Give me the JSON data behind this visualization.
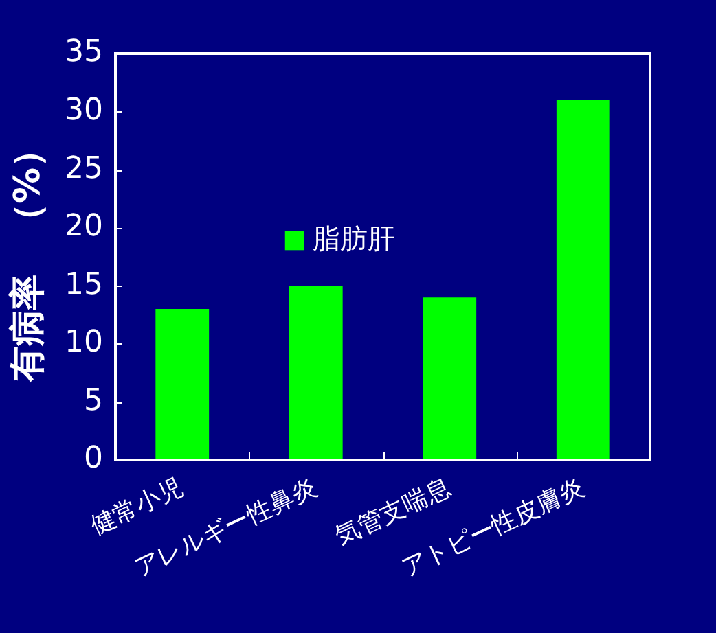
{
  "chart_data": {
    "type": "bar",
    "ylabel": "有病率　（%）",
    "categories": [
      "健常小児",
      "アレルギー性鼻炎",
      "気管支喘息",
      "アトピー性皮膚炎"
    ],
    "series": [
      {
        "name": "脂肪肝",
        "color": "#00ff00",
        "values": [
          13,
          15,
          14,
          31
        ]
      }
    ],
    "ylim": [
      0,
      35
    ],
    "yticks": [
      0,
      5,
      10,
      15,
      20,
      25,
      30,
      35
    ],
    "legend": "center"
  }
}
